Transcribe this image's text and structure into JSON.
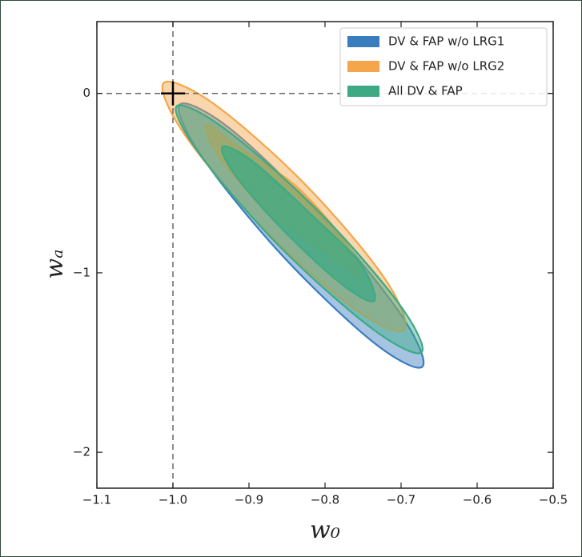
{
  "chart_data": {
    "type": "contour",
    "xlabel": "w₀",
    "ylabel": "wₐ",
    "xlim": [
      -1.1,
      -0.5
    ],
    "ylim": [
      -2.2,
      0.4
    ],
    "xticks": [
      {
        "value": -1.1,
        "label": "−1.1"
      },
      {
        "value": -1.0,
        "label": "−1.0"
      },
      {
        "value": -0.9,
        "label": "−0.9"
      },
      {
        "value": -0.8,
        "label": "−0.8"
      },
      {
        "value": -0.7,
        "label": "−0.7"
      },
      {
        "value": -0.6,
        "label": "−0.6"
      },
      {
        "value": -0.5,
        "label": "−0.5"
      }
    ],
    "yticks": [
      0,
      {
        "value": -1,
        "label": "−1"
      },
      {
        "value": -2,
        "label": "−2"
      }
    ],
    "reference": {
      "x": -1.0,
      "y": 0
    },
    "legend": "upper right",
    "series": [
      {
        "name": "DV & FAP w/o LRG1",
        "color": "#3a7dbf",
        "contours": [
          {
            "x": [
              -0.672,
              -0.7,
              -0.805,
              -0.925,
              -0.991,
              -0.962,
              -0.857,
              -0.737
            ],
            "y": [
              -1.523,
              -1.234,
              -0.686,
              -0.196,
              -0.062,
              -0.352,
              -0.9,
              -1.385
            ]
          }
        ]
      },
      {
        "name": "DV & FAP w/o LRG2",
        "color": "#f5a54a",
        "contours": [
          {
            "x": [
              -0.696,
              -0.722,
              -0.825,
              -0.945,
              -1.012,
              -0.985,
              -0.882,
              -0.762
            ],
            "y": [
              -1.318,
              -1.029,
              -0.512,
              -0.062,
              0.058,
              -0.227,
              -0.749,
              -1.198
            ]
          },
          {
            "x": [
              -0.754,
              -0.771,
              -0.837,
              -0.914,
              -0.956,
              -0.939,
              -0.873,
              -0.796
            ],
            "y": [
              -1.02,
              -0.842,
              -0.521,
              -0.298,
              -0.174,
              -0.352,
              -0.673,
              -0.895
            ]
          }
        ]
      },
      {
        "name": "All DV & FAP",
        "color": "#3daa84",
        "contours": [
          {
            "x": [
              -0.673,
              -0.703,
              -0.809,
              -0.931,
              -0.995,
              -0.964,
              -0.858,
              -0.737
            ],
            "y": [
              -1.443,
              -1.171,
              -0.655,
              -0.2,
              -0.071,
              -0.343,
              -0.86,
              -1.314
            ]
          },
          {
            "x": [
              -0.735,
              -0.754,
              -0.82,
              -0.895,
              -0.935,
              -0.916,
              -0.849,
              -0.775
            ],
            "y": [
              -1.154,
              -0.947,
              -0.668,
              -0.379,
              -0.298,
              -0.468,
              -0.788,
              -1.073
            ]
          }
        ]
      }
    ]
  }
}
